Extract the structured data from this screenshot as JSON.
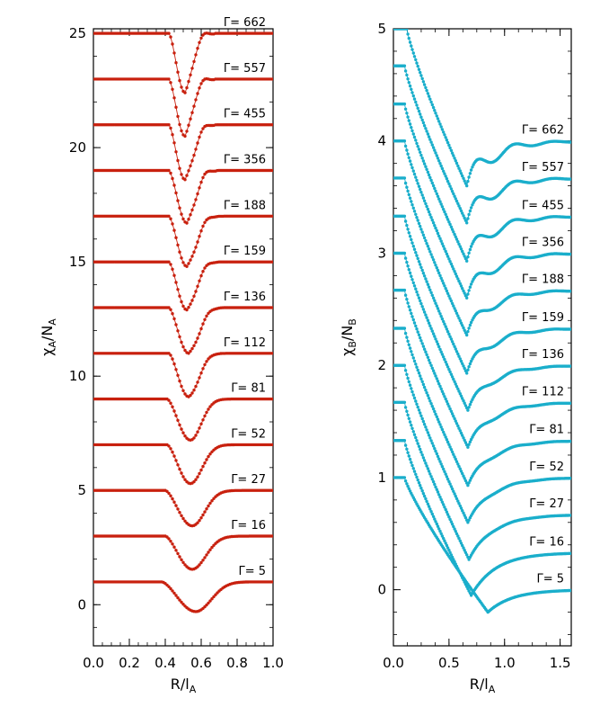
{
  "chart_data": [
    {
      "type": "line",
      "xlabel": "R/l",
      "xlabel_sub": "A",
      "ylabel": "χ",
      "ylabel_sub": "A",
      "ylabel_den": "/N",
      "ylabel_den_sub": "A",
      "xlim": [
        0.0,
        1.0
      ],
      "ylim": [
        -1.8,
        25.2
      ],
      "xticks": [
        0.0,
        0.2,
        0.4,
        0.6,
        0.8,
        1.0
      ],
      "xtick_labels": [
        "0.0",
        "0.2",
        "0.4",
        "0.6",
        "0.8",
        "1.0"
      ],
      "yticks": [
        0,
        5,
        10,
        15,
        20,
        25
      ],
      "ytick_labels": [
        "0",
        "5",
        "10",
        "15",
        "20",
        "25"
      ],
      "color": "#c8200e",
      "markers": true,
      "series": [
        {
          "label": "Γ= 662",
          "offset": 24,
          "p": {
            "x1": 0.42,
            "xm": 0.51,
            "dip": 2.6,
            "rec": 0.58,
            "w2": 0.04,
            "osc": 0.25
          }
        },
        {
          "label": "Γ= 557",
          "offset": 22,
          "p": {
            "x1": 0.42,
            "xm": 0.51,
            "dip": 2.5,
            "rec": 0.58,
            "w2": 0.04,
            "osc": 0.25
          }
        },
        {
          "label": "Γ= 455",
          "offset": 20,
          "p": {
            "x1": 0.42,
            "xm": 0.51,
            "dip": 2.4,
            "rec": 0.58,
            "w2": 0.045,
            "osc": 0.22
          }
        },
        {
          "label": "Γ= 356",
          "offset": 18,
          "p": {
            "x1": 0.42,
            "xm": 0.52,
            "dip": 2.3,
            "rec": 0.59,
            "w2": 0.045,
            "osc": 0.2
          }
        },
        {
          "label": "Γ= 188",
          "offset": 16,
          "p": {
            "x1": 0.42,
            "xm": 0.52,
            "dip": 2.2,
            "rec": 0.6,
            "w2": 0.05,
            "osc": 0.15
          }
        },
        {
          "label": "Γ= 159",
          "offset": 14,
          "p": {
            "x1": 0.42,
            "xm": 0.52,
            "dip": 2.1,
            "rec": 0.6,
            "w2": 0.05,
            "osc": 0.12
          }
        },
        {
          "label": "Γ= 136",
          "offset": 12,
          "p": {
            "x1": 0.42,
            "xm": 0.53,
            "dip": 2.0,
            "rec": 0.61,
            "w2": 0.055,
            "osc": 0.1
          }
        },
        {
          "label": "Γ= 112",
          "offset": 10,
          "p": {
            "x1": 0.42,
            "xm": 0.53,
            "dip": 1.9,
            "rec": 0.62,
            "w2": 0.055,
            "osc": 0.05
          }
        },
        {
          "label": "Γ= 81",
          "offset": 8,
          "p": {
            "x1": 0.41,
            "xm": 0.54,
            "dip": 1.8,
            "rec": 0.63,
            "w2": 0.06,
            "osc": 0.0
          }
        },
        {
          "label": "Γ= 52",
          "offset": 6,
          "p": {
            "x1": 0.41,
            "xm": 0.54,
            "dip": 1.7,
            "rec": 0.64,
            "w2": 0.065,
            "osc": 0.0
          }
        },
        {
          "label": "Γ= 27",
          "offset": 4,
          "p": {
            "x1": 0.4,
            "xm": 0.55,
            "dip": 1.55,
            "rec": 0.65,
            "w2": 0.07,
            "osc": 0.0
          }
        },
        {
          "label": "Γ= 16",
          "offset": 2,
          "p": {
            "x1": 0.4,
            "xm": 0.55,
            "dip": 1.45,
            "rec": 0.66,
            "w2": 0.075,
            "osc": 0.0
          }
        },
        {
          "label": "Γ= 5",
          "offset": 0,
          "p": {
            "x1": 0.38,
            "xm": 0.57,
            "dip": 1.3,
            "rec": 0.7,
            "w2": 0.085,
            "osc": 0.0
          }
        }
      ]
    },
    {
      "type": "line",
      "xlabel": "R/l",
      "xlabel_sub": "A",
      "ylabel": "χ",
      "ylabel_sub": "B",
      "ylabel_den": "/N",
      "ylabel_den_sub": "B",
      "xlim": [
        0.0,
        1.6
      ],
      "ylim": [
        -0.5,
        5.0
      ],
      "xticks": [
        0.0,
        0.5,
        1.0,
        1.5
      ],
      "xtick_labels": [
        "0.0",
        "0.5",
        "1.0",
        "1.5"
      ],
      "yticks": [
        0,
        1,
        2,
        3,
        4,
        5
      ],
      "ytick_labels": [
        "0",
        "1",
        "2",
        "3",
        "4",
        "5"
      ],
      "color": "#1aaecb",
      "markers": true,
      "series": [
        {
          "label": "Γ= 662",
          "offset": 4.0,
          "p": {
            "start": 5.0,
            "x0": 0.12,
            "xm": 0.66,
            "ym": 3.6,
            "osc": 0.13
          }
        },
        {
          "label": "Γ= 557",
          "offset": 3.67,
          "p": {
            "start": 4.67,
            "x0": 0.1,
            "xm": 0.66,
            "ym": 3.27,
            "osc": 0.12
          }
        },
        {
          "label": "Γ= 455",
          "offset": 3.33,
          "p": {
            "start": 4.33,
            "x0": 0.1,
            "xm": 0.66,
            "ym": 2.93,
            "osc": 0.11
          }
        },
        {
          "label": "Γ= 356",
          "offset": 3.0,
          "p": {
            "start": 4.0,
            "x0": 0.1,
            "xm": 0.66,
            "ym": 2.6,
            "osc": 0.1
          }
        },
        {
          "label": "Γ= 188",
          "offset": 2.67,
          "p": {
            "start": 3.67,
            "x0": 0.1,
            "xm": 0.66,
            "ym": 2.27,
            "osc": 0.08
          }
        },
        {
          "label": "Γ= 159",
          "offset": 2.33,
          "p": {
            "start": 3.33,
            "x0": 0.1,
            "xm": 0.66,
            "ym": 1.93,
            "osc": 0.07
          }
        },
        {
          "label": "Γ= 136",
          "offset": 2.0,
          "p": {
            "start": 3.0,
            "x0": 0.1,
            "xm": 0.67,
            "ym": 1.6,
            "osc": 0.05
          }
        },
        {
          "label": "Γ= 112",
          "offset": 1.67,
          "p": {
            "start": 2.67,
            "x0": 0.1,
            "xm": 0.67,
            "ym": 1.27,
            "osc": 0.04
          }
        },
        {
          "label": "Γ= 81",
          "offset": 1.33,
          "p": {
            "start": 2.33,
            "x0": 0.1,
            "xm": 0.67,
            "ym": 0.93,
            "osc": 0.03
          }
        },
        {
          "label": "Γ= 52",
          "offset": 1.0,
          "p": {
            "start": 2.0,
            "x0": 0.1,
            "xm": 0.67,
            "ym": 0.6,
            "osc": 0.02
          }
        },
        {
          "label": "Γ= 27",
          "offset": 0.67,
          "p": {
            "start": 1.67,
            "x0": 0.1,
            "xm": 0.68,
            "ym": 0.27,
            "osc": 0.01
          }
        },
        {
          "label": "Γ= 16",
          "offset": 0.33,
          "p": {
            "start": 1.33,
            "x0": 0.1,
            "xm": 0.7,
            "ym": -0.05,
            "osc": 0.0
          }
        },
        {
          "label": "Γ= 5",
          "offset": 0.0,
          "p": {
            "start": 1.0,
            "x0": 0.1,
            "xm": 0.85,
            "ym": -0.2,
            "osc": 0.0
          }
        }
      ]
    }
  ]
}
